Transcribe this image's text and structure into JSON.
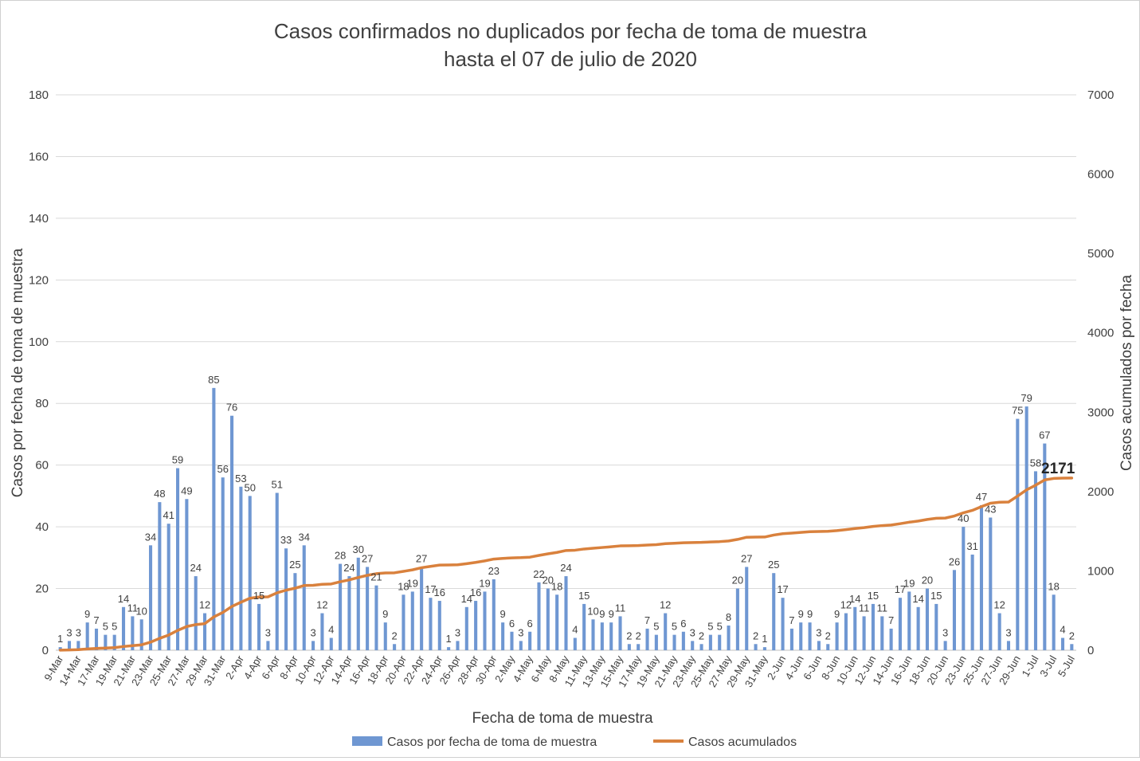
{
  "colors": {
    "bar": "#6f97d2",
    "line": "#d9813d",
    "grid": "#d9d9d9",
    "text": "#404040"
  },
  "chart_data": {
    "type": "bar+line",
    "title_lines": [
      "Casos confirmados no duplicados por fecha de toma de muestra",
      "hasta el 07 de julio de 2020"
    ],
    "xlabel": "Fecha de toma de muestra",
    "ylabel_left": "Casos por fecha de toma de muestra",
    "ylabel_right": "Casos acumulados por fecha",
    "ylim_left": [
      0,
      180
    ],
    "yticks_left": [
      0,
      20,
      40,
      60,
      80,
      100,
      120,
      140,
      160,
      180
    ],
    "ylim_right": [
      0,
      7000
    ],
    "yticks_right": [
      0,
      1000,
      2000,
      3000,
      4000,
      5000,
      6000,
      7000
    ],
    "grid": true,
    "legend_position": "bottom",
    "x_start_label": "9-Mar",
    "x_tick_labels": [
      "9-Mar",
      "14-Mar",
      "17-Mar",
      "19-Mar",
      "21-Mar",
      "23-Mar",
      "25-Mar",
      "27-Mar",
      "29-Mar",
      "31-Mar",
      "2-Apr",
      "4-Apr",
      "6-Apr",
      "8-Apr",
      "10-Apr",
      "12-Apr",
      "14-Apr",
      "16-Apr",
      "18-Apr",
      "20-Apr",
      "22-Apr",
      "24-Apr",
      "26-Apr",
      "28-Apr",
      "30-Apr",
      "2-May",
      "4-May",
      "6-May",
      "8-May",
      "11-May",
      "13-May",
      "15-May",
      "17-May",
      "19-May",
      "21-May",
      "23-May",
      "25-May",
      "27-May",
      "29-May",
      "31-May",
      "2-Jun",
      "4-Jun",
      "6-Jun",
      "8-Jun",
      "10-Jun",
      "12-Jun",
      "14-Jun",
      "16-Jun",
      "18-Jun",
      "20-Jun",
      "23-Jun",
      "25-Jun",
      "27-Jun",
      "29-Jun",
      "1-Jul",
      "3-Jul",
      "5-Jul"
    ],
    "series": [
      {
        "name": "Casos por fecha de toma de muestra",
        "kind": "bar",
        "values": [
          1,
          3,
          3,
          9,
          7,
          5,
          5,
          14,
          11,
          10,
          34,
          48,
          41,
          59,
          49,
          24,
          12,
          85,
          56,
          76,
          53,
          50,
          15,
          3,
          51,
          33,
          25,
          34,
          3,
          12,
          4,
          28,
          24,
          30,
          27,
          21,
          9,
          2,
          18,
          19,
          27,
          17,
          16,
          1,
          3,
          14,
          16,
          19,
          23,
          9,
          6,
          3,
          6,
          22,
          20,
          18,
          24,
          4,
          15,
          10,
          9,
          9,
          11,
          2,
          2,
          7,
          5,
          12,
          5,
          6,
          3,
          2,
          5,
          5,
          8,
          20,
          27,
          2,
          1,
          25,
          17,
          7,
          9,
          9,
          3,
          2,
          9,
          12,
          14,
          11,
          15,
          11,
          7,
          17,
          19,
          14,
          20,
          15,
          3,
          26,
          40,
          31,
          47,
          43,
          12,
          3,
          75,
          79,
          58,
          67,
          18,
          4,
          2
        ]
      },
      {
        "name": "Casos acumulados",
        "kind": "line",
        "values": [
          1,
          4,
          7,
          16,
          23,
          28,
          33,
          47,
          58,
          68,
          102,
          150,
          191,
          250,
          299,
          323,
          335,
          420,
          476,
          552,
          605,
          655,
          670,
          673,
          724,
          757,
          782,
          816,
          819,
          831,
          835,
          863,
          887,
          917,
          944,
          965,
          974,
          976,
          994,
          1013,
          1040,
          1057,
          1073,
          1074,
          1077,
          1091,
          1107,
          1126,
          1149,
          1158,
          1164,
          1167,
          1173,
          1195,
          1215,
          1233,
          1257,
          1261,
          1276,
          1286,
          1295,
          1304,
          1315,
          1317,
          1319,
          1326,
          1331,
          1343,
          1348,
          1354,
          1357,
          1359,
          1364,
          1369,
          1377,
          1397,
          1424,
          1426,
          1427,
          1452,
          1469,
          1476,
          1485,
          1494,
          1497,
          1499,
          1508,
          1520,
          1534,
          1545,
          1560,
          1571,
          1578,
          1595,
          1614,
          1628,
          1648,
          1663,
          1666,
          1692,
          1732,
          1763,
          1810,
          1853,
          1865,
          1868,
          1943,
          2022,
          2080,
          2147,
          2165,
          2169,
          2171
        ]
      }
    ],
    "annotations": [
      {
        "text": "2171",
        "series": "Casos acumulados",
        "at": "last"
      }
    ]
  }
}
